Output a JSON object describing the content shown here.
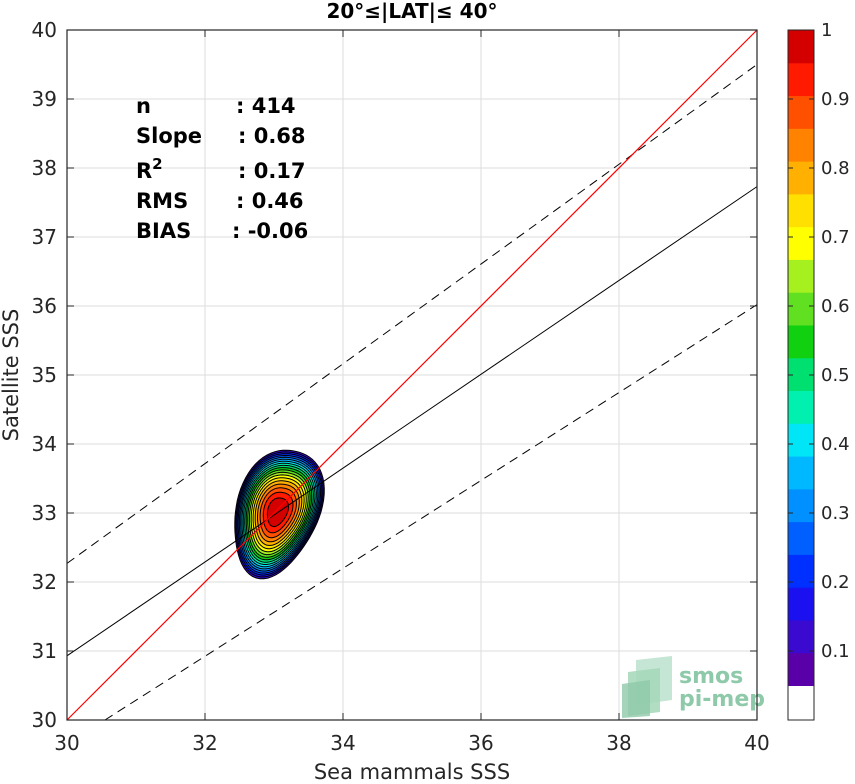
{
  "chart_data": {
    "type": "contour",
    "title": "20°≤|LAT|≤ 40°",
    "xlabel": "Sea mammals SSS",
    "ylabel": "Satellite SSS",
    "xlim": [
      30,
      40
    ],
    "ylim": [
      30,
      40
    ],
    "xticks": [
      "30",
      "32",
      "34",
      "36",
      "38",
      "40"
    ],
    "yticks": [
      "30",
      "31",
      "32",
      "33",
      "34",
      "35",
      "36",
      "37",
      "38",
      "39",
      "40"
    ],
    "grid": true,
    "stats": [
      {
        "label": "n",
        "value": ": 414"
      },
      {
        "label": "Slope",
        "value": ": 0.68"
      },
      {
        "label": "R",
        "sup": "2",
        "value": ": 0.17"
      },
      {
        "label": "RMS",
        "value": ": 0.46"
      },
      {
        "label": "BIAS",
        "value": ": -0.06"
      }
    ],
    "lines": {
      "identity": {
        "x": [
          30,
          40
        ],
        "y": [
          30,
          40
        ],
        "color": "#ff0000"
      },
      "fit": {
        "x": [
          30,
          40
        ],
        "y": [
          30.93,
          37.73
        ],
        "color": "#000000"
      },
      "fit_upper": {
        "x": [
          30,
          40
        ],
        "y": [
          32.27,
          39.5
        ],
        "style": "dashed"
      },
      "fit_lower": {
        "x": [
          30.55,
          40
        ],
        "y": [
          30,
          36.02
        ],
        "style": "dashed"
      }
    },
    "density": {
      "center": {
        "x": 33.05,
        "y": 33.02
      },
      "half_widths_outer": {
        "x": 0.62,
        "y": 0.93
      },
      "levels": [
        0.05,
        0.1,
        0.15,
        0.2,
        0.25,
        0.3,
        0.35,
        0.4,
        0.45,
        0.5,
        0.55,
        0.6,
        0.65,
        0.7,
        0.75,
        0.8,
        0.85,
        0.9,
        0.95
      ]
    },
    "colorbar": {
      "range": [
        0,
        1
      ],
      "tick_labels": [
        "0.1",
        "0.2",
        "0.3",
        "0.4",
        "0.5",
        "0.6",
        "0.7",
        "0.8",
        "0.9",
        "1"
      ],
      "colors": [
        "#ffffff",
        "#5a00a8",
        "#3a0ad0",
        "#1a10f0",
        "#0030ff",
        "#0060ff",
        "#0090ff",
        "#00b8ff",
        "#00e6f6",
        "#00f0b0",
        "#00e070",
        "#10d010",
        "#60e020",
        "#a6f020",
        "#ffff00",
        "#ffe000",
        "#ffb000",
        "#ff8200",
        "#ff5000",
        "#ff1a00",
        "#d40000",
        "#8c0000"
      ]
    },
    "watermark": [
      "smos",
      "pi-mep"
    ]
  }
}
